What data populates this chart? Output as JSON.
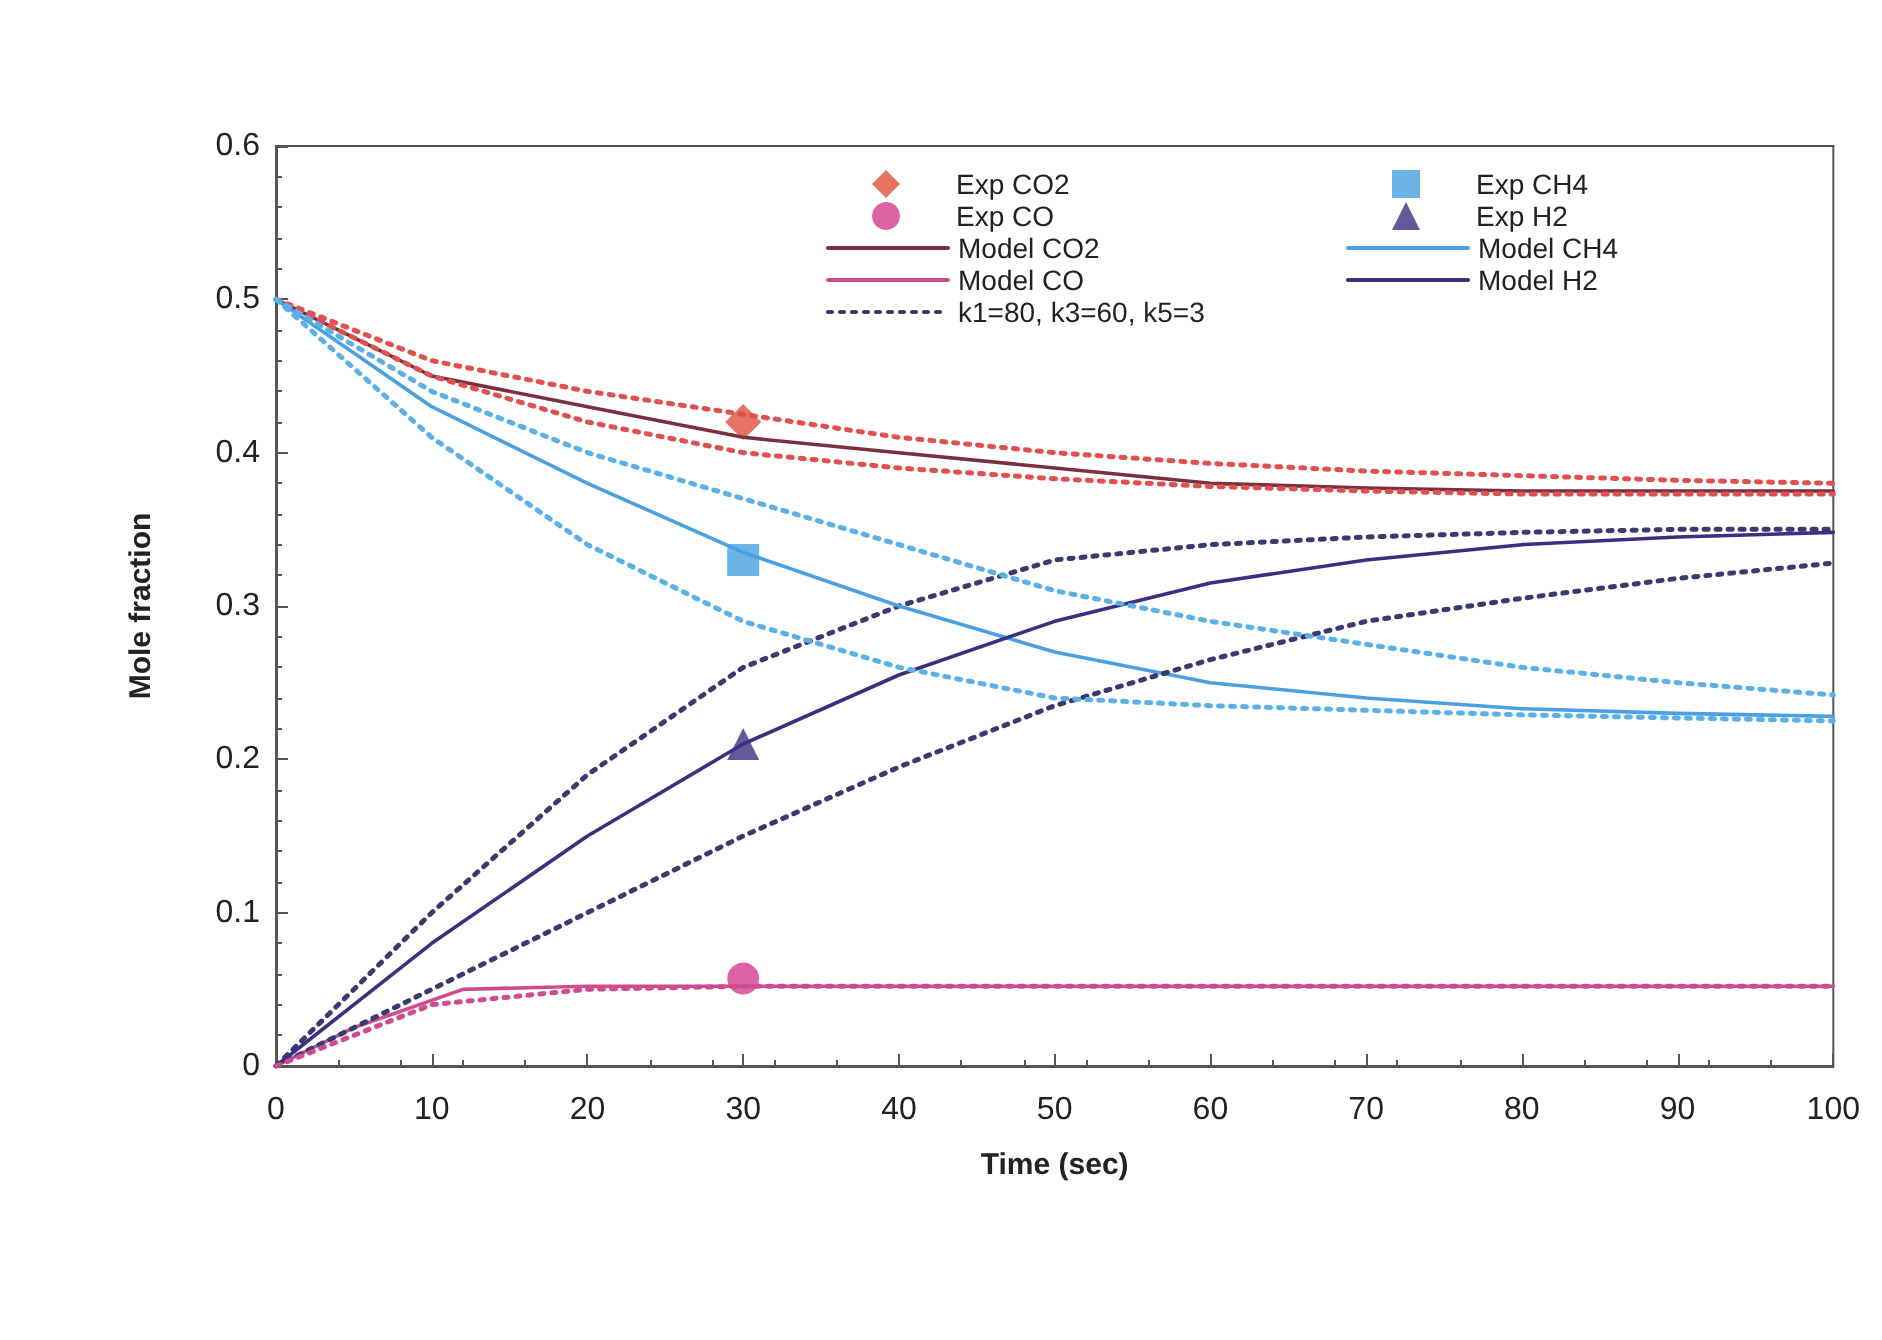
{
  "chart_data": {
    "type": "line",
    "xlabel": "Time (sec)",
    "ylabel": "Mole fraction",
    "x": [
      0,
      10,
      20,
      30,
      40,
      50,
      60,
      70,
      80,
      90,
      100
    ],
    "xlim": [
      0,
      100
    ],
    "xticks": [
      0,
      10,
      20,
      30,
      40,
      50,
      60,
      70,
      80,
      90,
      100
    ],
    "ylim": [
      0,
      0.6
    ],
    "yticks": [
      0,
      0.1,
      0.2,
      0.3,
      0.4,
      0.5,
      0.6
    ],
    "grid": false,
    "legend": "top right",
    "marker": "none",
    "line_style": "solid",
    "series": [
      {
        "name": "Exp CO2",
        "type": "scatter",
        "marker": "diamond",
        "color": "#e0503a",
        "x": [
          30
        ],
        "values": [
          0.42
        ]
      },
      {
        "name": "Exp CO",
        "type": "scatter",
        "marker": "circle",
        "color": "#d63c8c",
        "x": [
          30
        ],
        "values": [
          0.057
        ]
      },
      {
        "name": "Model CO2",
        "color": "#7a3040",
        "values": [
          0.5,
          0.45,
          0.43,
          0.41,
          0.4,
          0.39,
          0.38,
          0.377,
          0.375,
          0.375,
          0.375
        ]
      },
      {
        "name": "Model CO",
        "color": "#d04a90",
        "x": [
          0,
          5,
          12,
          20,
          30,
          40,
          50,
          60,
          70,
          80,
          90,
          100
        ],
        "values": [
          0,
          0.025,
          0.05,
          0.052,
          0.052,
          0.052,
          0.052,
          0.052,
          0.052,
          0.052,
          0.052,
          0.052
        ]
      },
      {
        "name": "k1=80, k3=60, k5=3",
        "color": "#3a3a70",
        "line_style": "dotted",
        "values": [
          0,
          0.1,
          0.19,
          0.26,
          0.3,
          0.33,
          0.34,
          0.345,
          0.348,
          0.35,
          0.35
        ]
      },
      {
        "name": "Exp CH4",
        "type": "scatter",
        "marker": "square",
        "color": "#4aa0e0",
        "x": [
          30
        ],
        "values": [
          0.33
        ]
      },
      {
        "name": "Exp H2",
        "type": "scatter",
        "marker": "triangle",
        "color": "#3a3080",
        "x": [
          30
        ],
        "values": [
          0.21
        ]
      },
      {
        "name": "Model CH4",
        "color": "#4aa0e0",
        "values": [
          0.5,
          0.43,
          0.38,
          0.335,
          0.3,
          0.27,
          0.25,
          0.24,
          0.233,
          0.23,
          0.228
        ]
      },
      {
        "name": "Model H2",
        "color": "#3a3080",
        "values": [
          0,
          0.08,
          0.15,
          0.21,
          0.255,
          0.29,
          0.315,
          0.33,
          0.34,
          0.345,
          0.348
        ]
      },
      {
        "color": "#3a3a70",
        "line_style": "dotted",
        "values": [
          0,
          0.05,
          0.1,
          0.15,
          0.195,
          0.235,
          0.265,
          0.29,
          0.305,
          0.318,
          0.328
        ]
      },
      {
        "color": "#e05050",
        "line_style": "dotted",
        "values": [
          0.5,
          0.46,
          0.44,
          0.425,
          0.41,
          0.4,
          0.393,
          0.388,
          0.385,
          0.382,
          0.38
        ]
      },
      {
        "color": "#e05050",
        "line_style": "dotted",
        "values": [
          0.5,
          0.45,
          0.42,
          0.4,
          0.39,
          0.383,
          0.378,
          0.375,
          0.373,
          0.373,
          0.373
        ]
      },
      {
        "color": "#5ab0e8",
        "line_style": "dotted",
        "values": [
          0.5,
          0.44,
          0.4,
          0.37,
          0.34,
          0.31,
          0.29,
          0.275,
          0.26,
          0.25,
          0.242
        ]
      },
      {
        "color": "#5ab0e8",
        "line_style": "dotted",
        "values": [
          0.5,
          0.41,
          0.34,
          0.29,
          0.26,
          0.24,
          0.235,
          0.232,
          0.229,
          0.227,
          0.225
        ]
      },
      {
        "color": "#d04a90",
        "line_style": "dotted",
        "x": [
          0,
          5,
          10,
          20,
          30,
          40,
          50,
          60,
          70,
          80,
          90,
          100
        ],
        "values": [
          0,
          0.02,
          0.04,
          0.05,
          0.052,
          0.052,
          0.052,
          0.052,
          0.052,
          0.052,
          0.052,
          0.052
        ]
      }
    ]
  }
}
